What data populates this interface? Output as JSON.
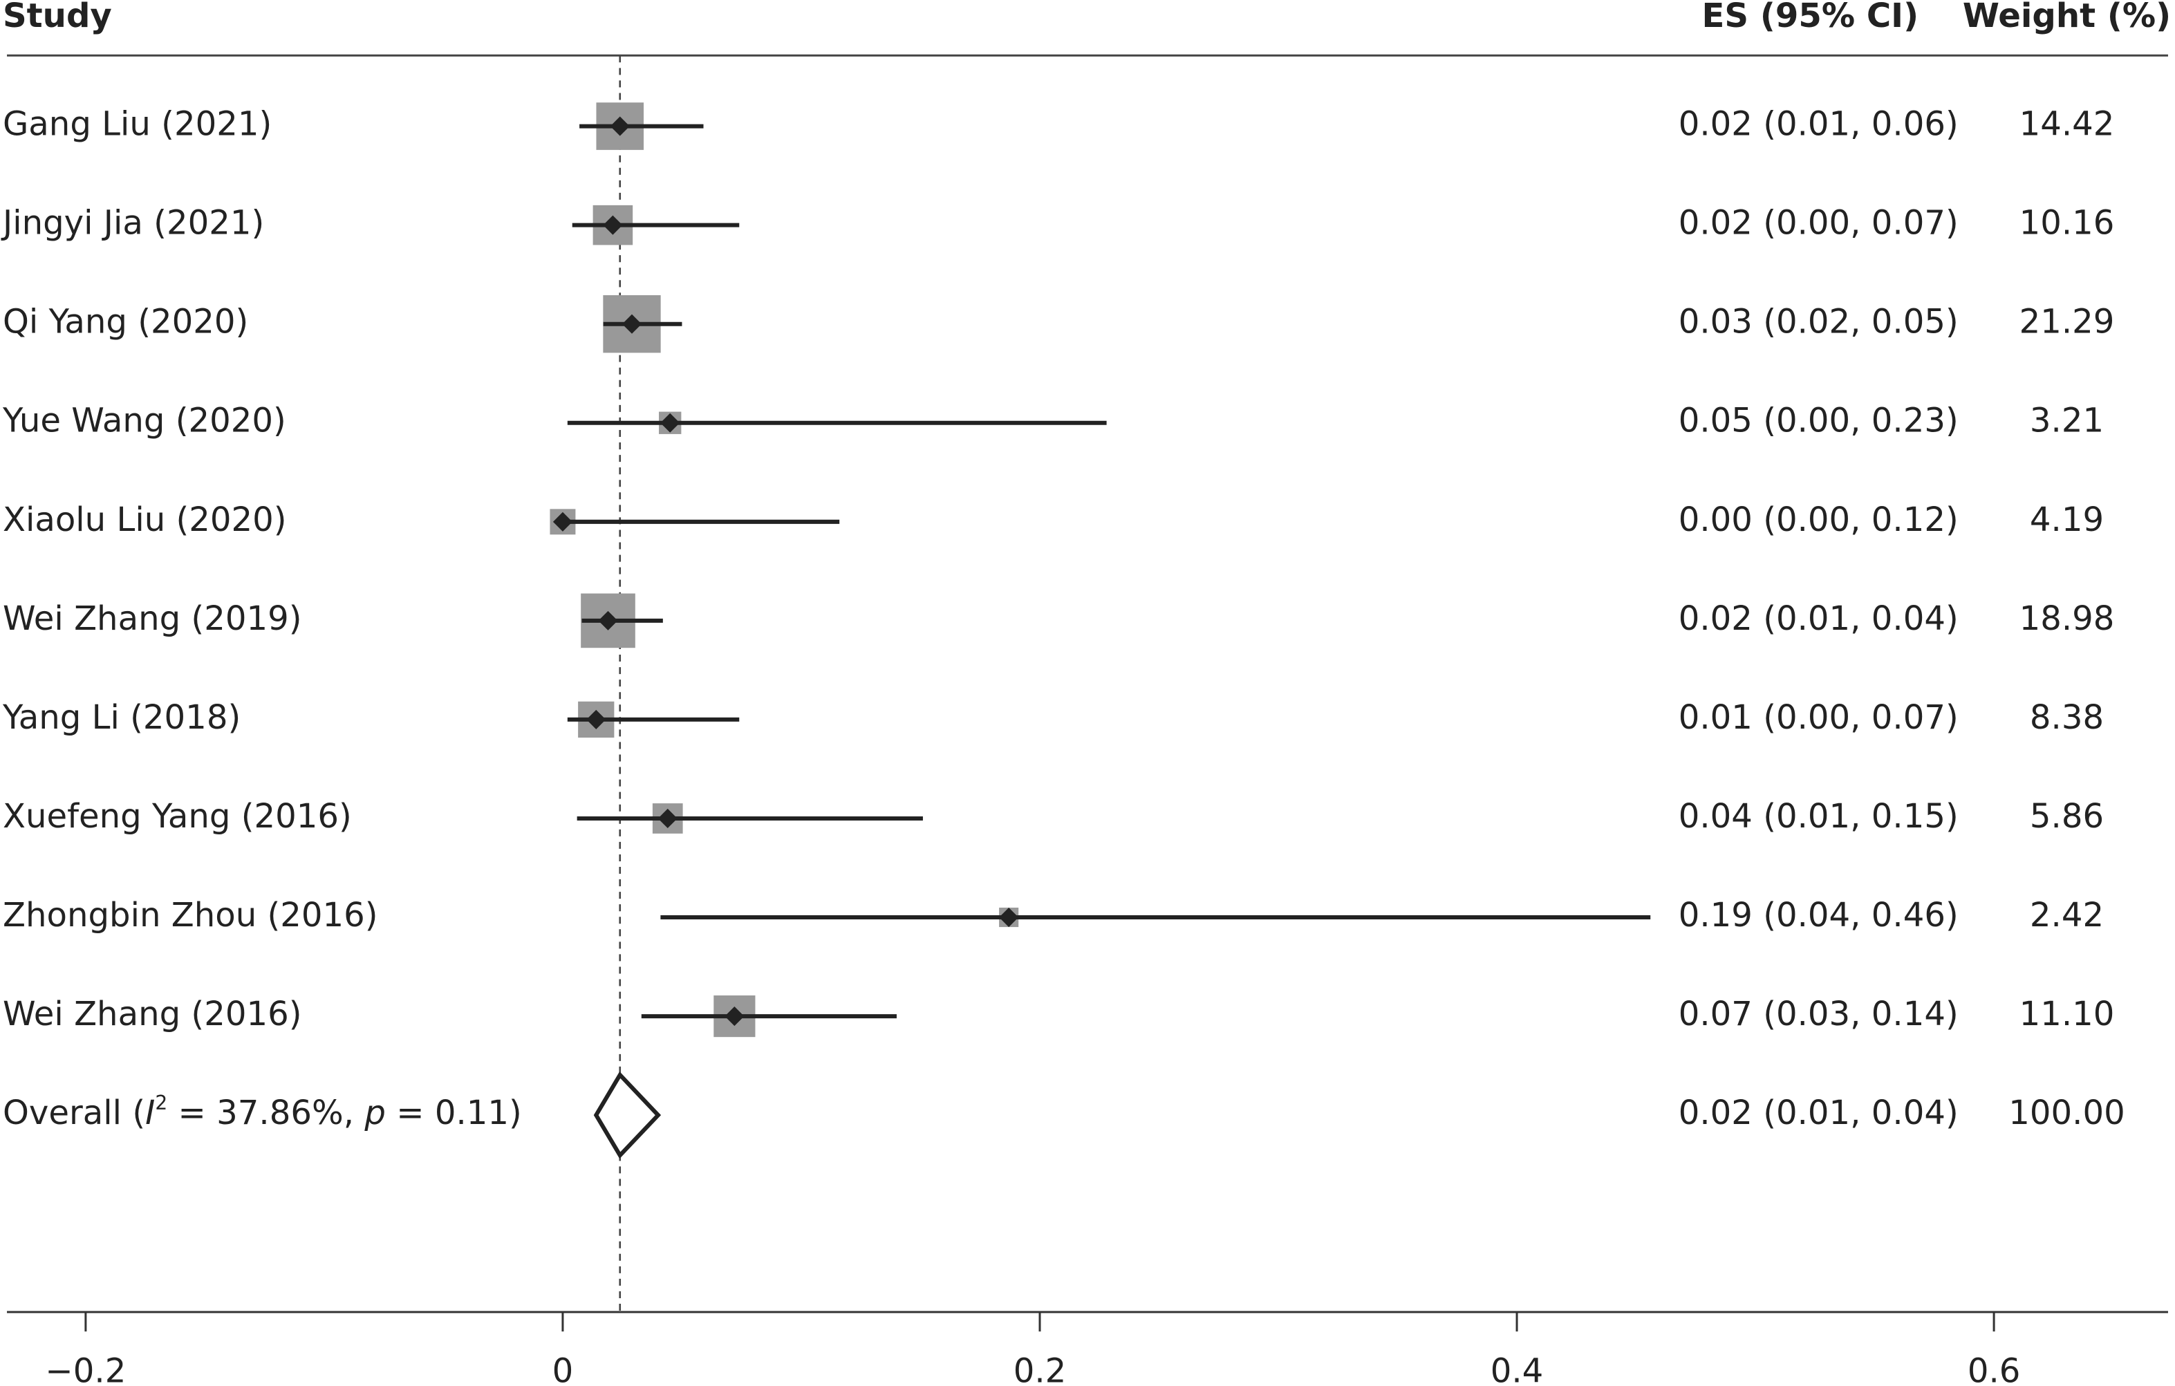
{
  "chart_data": {
    "type": "forest",
    "headers": [
      "Study",
      "ES (95% CI)",
      "Weight (%)"
    ],
    "studies": [
      {
        "name": "Gang Liu (2021)",
        "es": 0.024,
        "ci": [
          0.007,
          0.059
        ],
        "es_label": "0.02 (0.01, 0.06)",
        "weight": 14.42
      },
      {
        "name": "Jingyi Jia (2021)",
        "es": 0.021,
        "ci": [
          0.004,
          0.074
        ],
        "es_label": "0.02 (0.00, 0.07)",
        "weight": 10.16
      },
      {
        "name": "Qi Yang (2020)",
        "es": 0.029,
        "ci": [
          0.017,
          0.05
        ],
        "es_label": "0.03 (0.02, 0.05)",
        "weight": 21.29
      },
      {
        "name": "Yue Wang (2020)",
        "es": 0.045,
        "ci": [
          0.002,
          0.228
        ],
        "es_label": "0.05 (0.00, 0.23)",
        "weight": 3.21
      },
      {
        "name": "Xiaolu Liu (2020)",
        "es": 0,
        "ci": [
          0,
          0.116
        ],
        "es_label": "0.00 (0.00, 0.12)",
        "weight": 4.19
      },
      {
        "name": "Wei Zhang (2019)",
        "es": 0.019,
        "ci": [
          0.008,
          0.042
        ],
        "es_label": "0.02 (0.01, 0.04)",
        "weight": 18.98
      },
      {
        "name": "Yang Li (2018)",
        "es": 0.014,
        "ci": [
          0.002,
          0.074
        ],
        "es_label": "0.01 (0.00, 0.07)",
        "weight": 8.38
      },
      {
        "name": "Xuefeng Yang (2016)",
        "es": 0.044,
        "ci": [
          0.006,
          0.151
        ],
        "es_label": "0.04 (0.01, 0.15)",
        "weight": 5.86
      },
      {
        "name": "Zhongbin Zhou (2016)",
        "es": 0.187,
        "ci": [
          0.041,
          0.456
        ],
        "es_label": "0.19 (0.04, 0.46)",
        "weight": 2.42
      },
      {
        "name": "Wei Zhang (2016)",
        "es": 0.072,
        "ci": [
          0.033,
          0.14
        ],
        "es_label": "0.07 (0.03, 0.14)",
        "weight": 11.1,
        "weight_label": "11.10"
      }
    ],
    "overall": {
      "label_parts": [
        "Overall (",
        "I",
        "2",
        " = 37.86%, ",
        "p",
        " = 0.11)"
      ],
      "es": 0.024,
      "ci": [
        0.014,
        0.04
      ],
      "es_label": "0.02 (0.01, 0.04)",
      "weight": 100,
      "weight_label": "100.00"
    },
    "xlim": [
      -0.233,
      0.673
    ],
    "xticks": [
      {
        "value": -0.2,
        "label": "−0.2"
      },
      0,
      0.2,
      0.4,
      0.6
    ],
    "square_color": "#999999",
    "point_color": "#222222"
  }
}
